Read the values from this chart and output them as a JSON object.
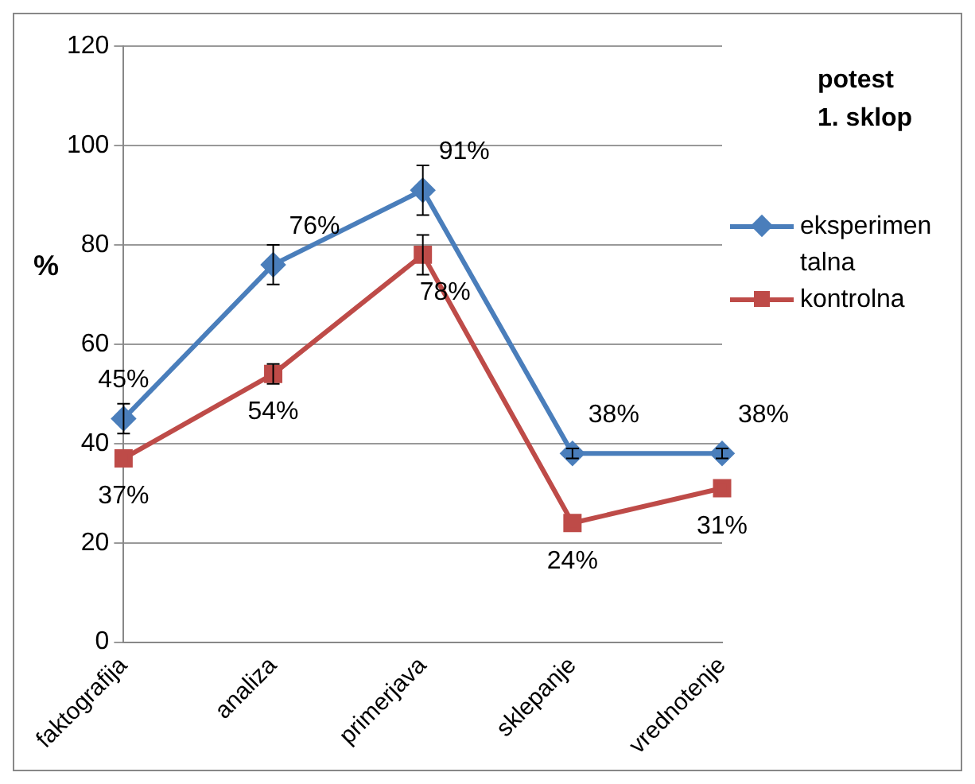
{
  "chart_data": {
    "type": "line",
    "title": "potest\n1. sklop",
    "ylabel": "%",
    "categories": [
      "faktografija",
      "analiza",
      "primerjava",
      "sklepanje",
      "vrednotenje"
    ],
    "series": [
      {
        "name": "eksperimentalna",
        "color": "#4a7ebb",
        "marker": "diamond",
        "values": [
          45,
          76,
          91,
          38,
          38
        ],
        "value_labels": [
          "45%",
          "76%",
          "91%",
          "38%",
          "38%"
        ],
        "errors": [
          3,
          4,
          5,
          1,
          1
        ]
      },
      {
        "name": "kontrolna",
        "color": "#be4b48",
        "marker": "square",
        "values": [
          37,
          54,
          78,
          24,
          31
        ],
        "value_labels": [
          "37%",
          "54%",
          "78%",
          "24%",
          "31%"
        ],
        "errors": [
          null,
          2,
          4,
          null,
          null
        ]
      }
    ],
    "ylim": [
      0,
      120
    ],
    "yticks": [
      0,
      20,
      40,
      60,
      80,
      100,
      120
    ],
    "grid": "y",
    "legend": "right",
    "line_style": "solid"
  }
}
